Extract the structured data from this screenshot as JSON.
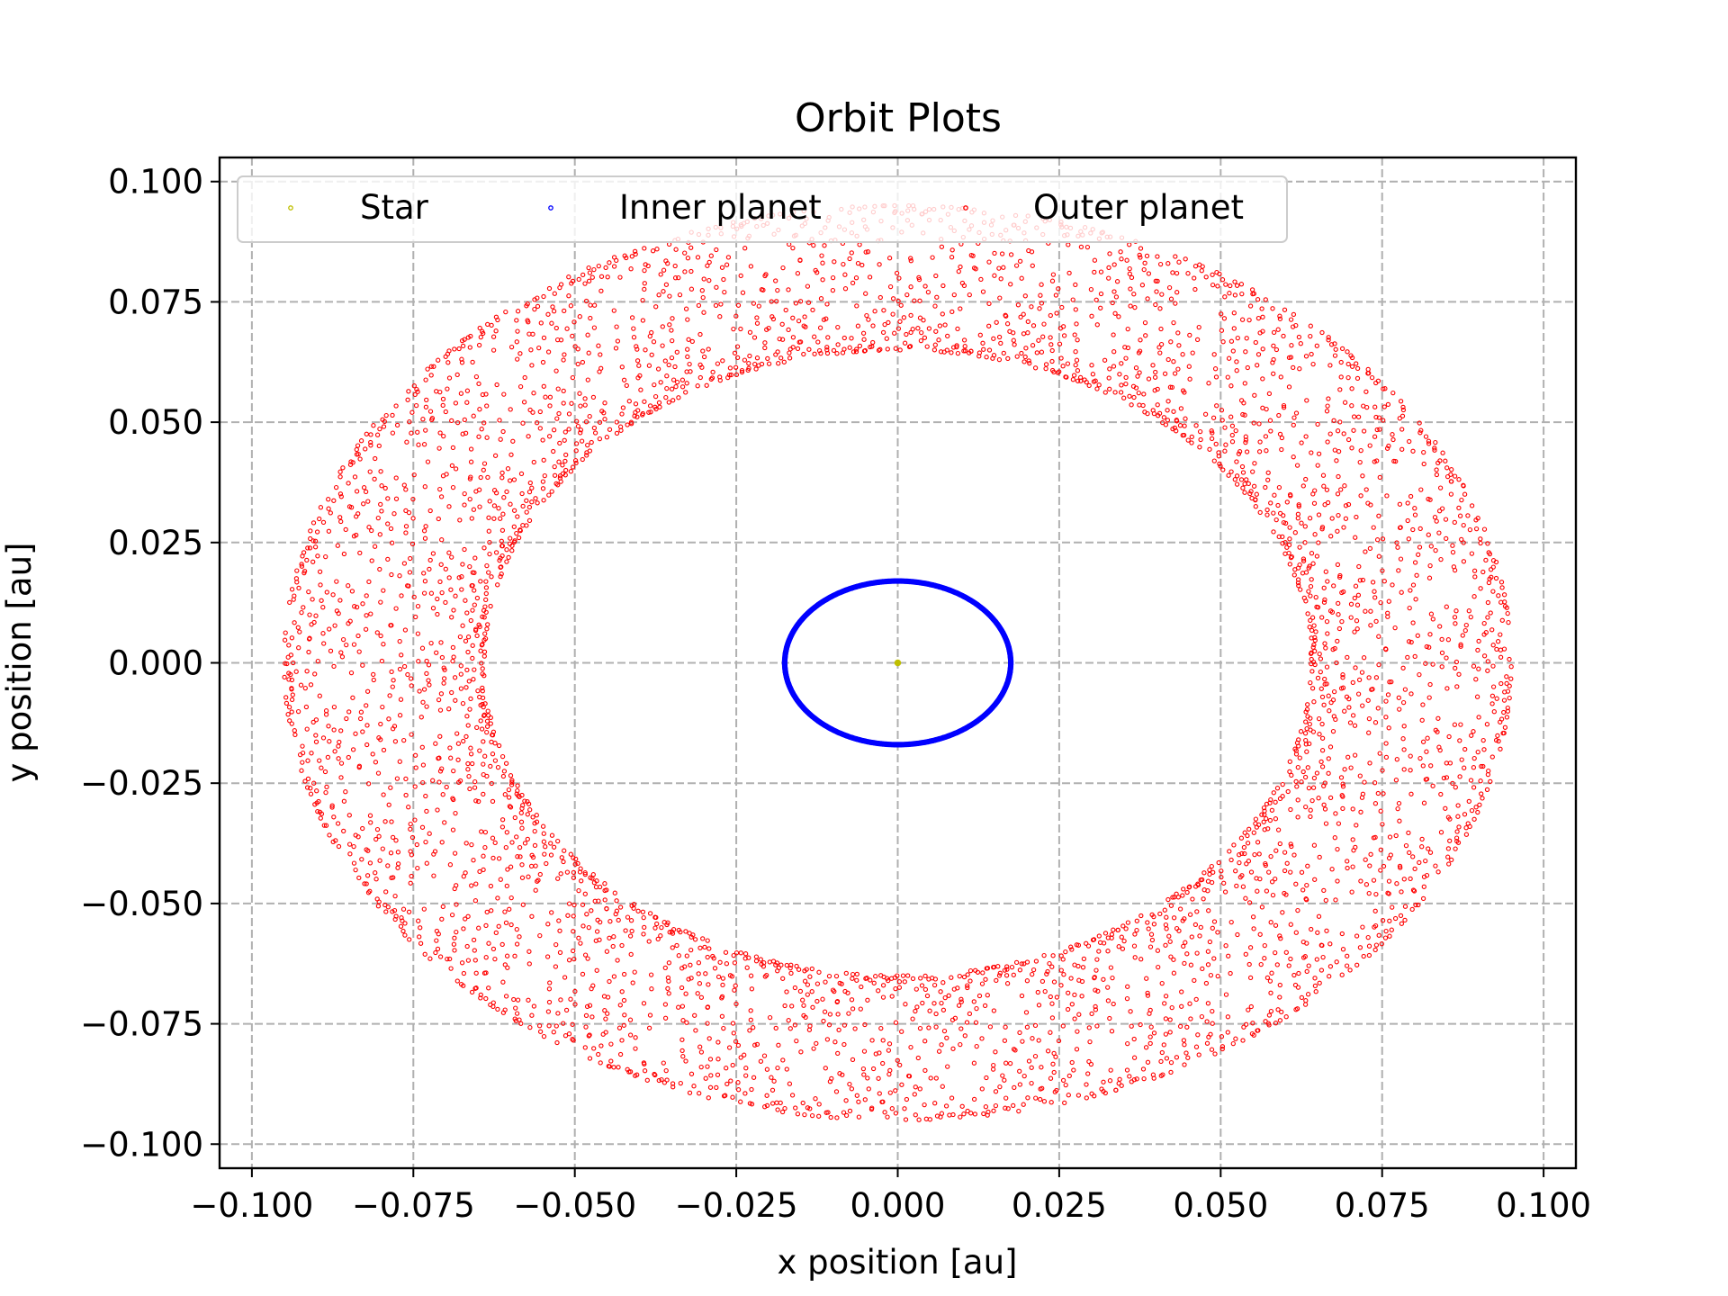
{
  "chart_data": {
    "type": "scatter",
    "title": "Orbit Plots",
    "xlabel": "x position [au]",
    "ylabel": "y position [au]",
    "xlim": [
      -0.105,
      0.105
    ],
    "ylim": [
      -0.105,
      0.105
    ],
    "xticks": [
      -0.1,
      -0.075,
      -0.05,
      -0.025,
      0.0,
      0.025,
      0.05,
      0.075,
      0.1
    ],
    "yticks": [
      -0.1,
      -0.075,
      -0.05,
      -0.025,
      0.0,
      0.025,
      0.05,
      0.075,
      0.1
    ],
    "xtick_labels": [
      "−0.100",
      "−0.075",
      "−0.050",
      "−0.025",
      "0.000",
      "0.025",
      "0.050",
      "0.075",
      "0.100"
    ],
    "ytick_labels": [
      "−0.100",
      "−0.075",
      "−0.050",
      "−0.025",
      "0.000",
      "0.025",
      "0.050",
      "0.075",
      "0.100"
    ],
    "grid": true,
    "grid_style": "dashed",
    "legend_position": "top",
    "series": [
      {
        "name": "Star",
        "color": "#bfbf00",
        "shape": "point",
        "center": [
          0.0,
          0.0
        ]
      },
      {
        "name": "Inner planet",
        "color": "#0000ff",
        "shape": "ellipse",
        "center": [
          0.0,
          0.0
        ],
        "semi_axis_x": 0.0175,
        "semi_axis_y": 0.017,
        "n_points": 600
      },
      {
        "name": "Outer planet",
        "color": "#ff0000",
        "shape": "precessing-ellipse-band",
        "center": [
          0.0,
          0.0
        ],
        "outer_semi_axis_x": 0.095,
        "outer_semi_axis_y": 0.095,
        "inner_semi_axis_x": 0.064,
        "inner_semi_axis_y": 0.065,
        "n_points": 4200
      }
    ]
  }
}
